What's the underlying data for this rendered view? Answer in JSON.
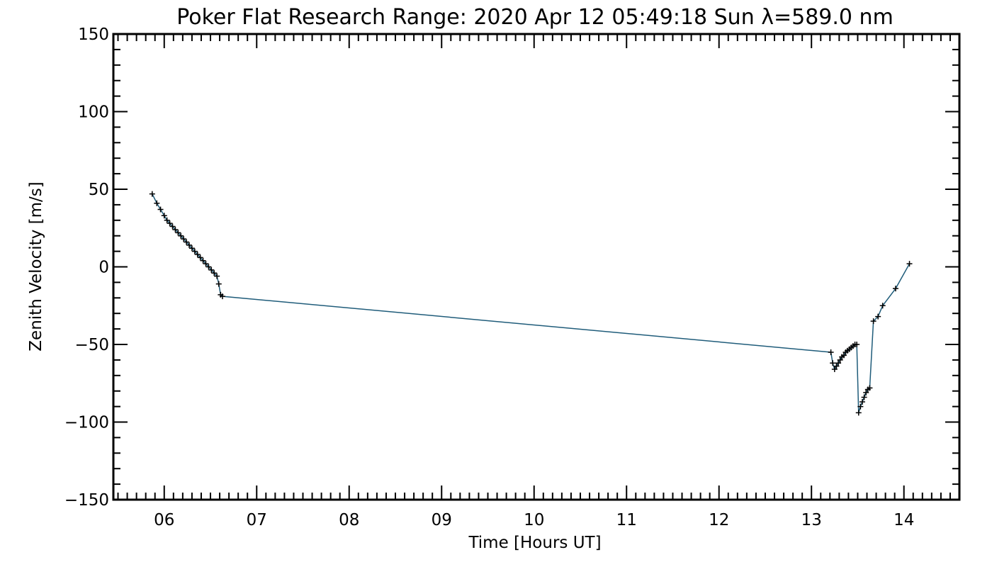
{
  "chart_data": {
    "type": "line",
    "title": "Poker Flat Research Range: 2020 Apr 12 05:49:18 Sun λ=589.0 nm",
    "xlabel": "Time [Hours UT]",
    "ylabel": "Zenith Velocity [m/s]",
    "xlim": [
      5.45,
      14.6
    ],
    "ylim": [
      -150,
      150
    ],
    "x_ticks": [
      6,
      7,
      8,
      9,
      10,
      11,
      12,
      13,
      14
    ],
    "x_tick_labels": [
      "06",
      "07",
      "08",
      "09",
      "10",
      "11",
      "12",
      "13",
      "14"
    ],
    "y_ticks": [
      -150,
      -100,
      -50,
      0,
      50,
      100,
      150
    ],
    "y_tick_labels": [
      "−150",
      "−100",
      "−50",
      "0",
      "50",
      "100",
      "150"
    ],
    "grid": false,
    "line_color": "#1f5c7a",
    "marker": "plus",
    "series": [
      {
        "name": "zenith velocity",
        "x": [
          5.87,
          5.92,
          5.96,
          6.0,
          6.03,
          6.06,
          6.09,
          6.12,
          6.15,
          6.18,
          6.21,
          6.24,
          6.27,
          6.3,
          6.33,
          6.36,
          6.39,
          6.42,
          6.45,
          6.48,
          6.51,
          6.54,
          6.57,
          6.59,
          6.61,
          6.63,
          13.21,
          13.23,
          13.25,
          13.27,
          13.29,
          13.31,
          13.33,
          13.35,
          13.37,
          13.39,
          13.41,
          13.43,
          13.45,
          13.47,
          13.49,
          13.51,
          13.53,
          13.55,
          13.57,
          13.59,
          13.61,
          13.63,
          13.67,
          13.72,
          13.77,
          13.91,
          14.06
        ],
        "values": [
          47,
          41,
          37,
          33,
          30,
          28,
          26,
          24,
          22,
          20,
          18,
          16,
          14,
          12,
          10,
          8,
          6,
          4,
          2,
          0,
          -2,
          -4,
          -6,
          -11,
          -18,
          -19,
          -55,
          -62,
          -66,
          -64,
          -62,
          -60,
          -58,
          -57,
          -55,
          -54,
          -53,
          -52,
          -51,
          -50,
          -50,
          -94,
          -90,
          -87,
          -84,
          -81,
          -79,
          -78,
          -35,
          -32,
          -25,
          -14,
          2
        ]
      }
    ]
  }
}
